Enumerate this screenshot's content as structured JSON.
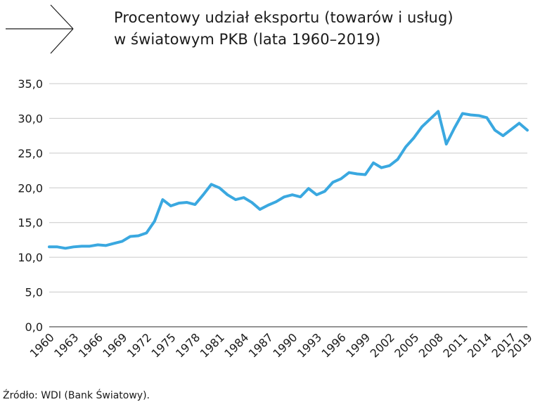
{
  "header": {
    "title_line1": "Procentowy udział eksportu (towarów i usług)",
    "title_line2": "w światowym PKB (lata 1960–2019)"
  },
  "footer": {
    "source": "Źródło: WDI (Bank Światowy)."
  },
  "colors": {
    "line": "#3aa8e0",
    "grid": "#c9c9c9",
    "axis": "#555555",
    "text": "#1a1a1a"
  },
  "icons": {
    "header_arrow": "arrow-right-icon"
  },
  "chart_data": {
    "type": "line",
    "title": "Procentowy udział eksportu (towarów i usług) w światowym PKB (lata 1960–2019)",
    "xlabel": "",
    "ylabel": "",
    "ylim": [
      0,
      35
    ],
    "yticks": [
      "0,0",
      "5,0",
      "10,0",
      "15,0",
      "20,0",
      "25,0",
      "30,0",
      "35,0"
    ],
    "xticks": [
      "1960",
      "1963",
      "1966",
      "1969",
      "1972",
      "1975",
      "1978",
      "1981",
      "1984",
      "1987",
      "1990",
      "1993",
      "1996",
      "1999",
      "2002",
      "2005",
      "2008",
      "2011",
      "2014",
      "2017",
      "2019"
    ],
    "grid": true,
    "legend": "none",
    "x": [
      1960,
      1961,
      1962,
      1963,
      1964,
      1965,
      1966,
      1967,
      1968,
      1969,
      1970,
      1971,
      1972,
      1973,
      1974,
      1975,
      1976,
      1977,
      1978,
      1979,
      1980,
      1981,
      1982,
      1983,
      1984,
      1985,
      1986,
      1987,
      1988,
      1989,
      1990,
      1991,
      1992,
      1993,
      1994,
      1995,
      1996,
      1997,
      1998,
      1999,
      2000,
      2001,
      2002,
      2003,
      2004,
      2005,
      2006,
      2007,
      2008,
      2009,
      2010,
      2011,
      2012,
      2013,
      2014,
      2015,
      2016,
      2017,
      2018,
      2019
    ],
    "series": [
      {
        "values": [
          11.5,
          11.5,
          11.3,
          11.5,
          11.6,
          11.6,
          11.8,
          11.7,
          12.0,
          12.3,
          13.0,
          13.1,
          13.5,
          15.2,
          18.3,
          17.4,
          17.8,
          17.9,
          17.6,
          19.0,
          20.5,
          20.0,
          19.0,
          18.3,
          18.6,
          17.9,
          16.9,
          17.5,
          18.0,
          18.7,
          19.0,
          18.7,
          19.9,
          19.0,
          19.5,
          20.8,
          21.3,
          22.2,
          22.0,
          21.9,
          23.6,
          22.9,
          23.2,
          24.1,
          25.9,
          27.2,
          28.8,
          29.9,
          31.0,
          26.3,
          28.6,
          30.7,
          30.5,
          30.4,
          30.1,
          28.3,
          27.5,
          28.4,
          29.3,
          28.3
        ]
      }
    ]
  }
}
